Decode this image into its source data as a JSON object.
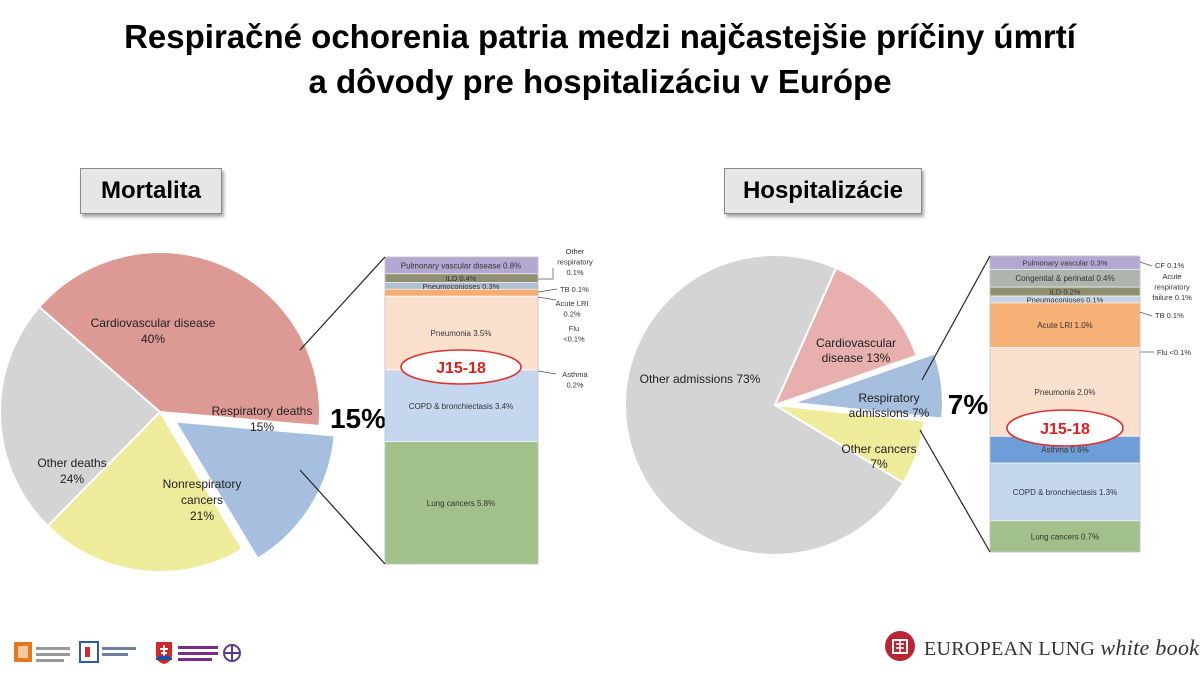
{
  "title_line1": "Respiračné ochorenia patria medzi najčastejšie príčiny úmrtí",
  "title_line2": "a dôvody pre hospitalizáciu v Európe",
  "footer_brand": {
    "prefix": "EUROPEAN LUNG ",
    "suffix": "white book"
  },
  "chart_data": [
    {
      "type": "pie",
      "panel_label": "Mortalita",
      "slices": [
        {
          "label": "Cardiovascular disease",
          "value_label": "40%",
          "value": 40,
          "color": "#dd9a94"
        },
        {
          "label": "Respiratory deaths",
          "value_label": "15%",
          "value": 15,
          "color": "#a7bfdf",
          "exploded": true
        },
        {
          "label": "Nonrespiratory cancers",
          "value_label": "21%",
          "value": 21,
          "color": "#eeeb9b"
        },
        {
          "label": "Other deaths",
          "value_label": "24%",
          "value": 24,
          "color": "#d4d4d4"
        }
      ],
      "highlight": "15%",
      "breakdown": {
        "type": "stacked-bar",
        "segments": [
          {
            "label": "Pulmonary vascular disease 0.8%",
            "value": 0.8,
            "color": "#b4a8d3"
          },
          {
            "label": "ILD 0.4%",
            "value": 0.4,
            "color": "#8f8f70"
          },
          {
            "label": "Pneumoconioses 0.3%",
            "value": 0.3,
            "color": "#aebfd0"
          },
          {
            "label": "",
            "value": 0.2,
            "color": "#f5ad74"
          },
          {
            "label": "Pneumonia 3.5%",
            "value": 3.5,
            "color": "#fbe1cd"
          },
          {
            "label": "COPD & bronchiectasis 3.4%",
            "value": 3.4,
            "color": "#c5d6ef"
          },
          {
            "label": "Lung cancers 5.8%",
            "value": 5.8,
            "color": "#a2c08a"
          }
        ],
        "side_notes": [
          "Other respiratory 0.1%",
          "TB 0.1%",
          "Acute LRI 0.2%",
          "Flu <0.1%",
          "Asthma 0.2%"
        ],
        "code_label": "J15-18"
      }
    },
    {
      "type": "pie",
      "panel_label": "Hospitalizácie",
      "slices": [
        {
          "label": "Cardiovascular disease 13%",
          "value_label": "",
          "value": 13,
          "color": "#e7b0ae"
        },
        {
          "label": "Respiratory admissions 7%",
          "value_label": "",
          "value": 7,
          "color": "#a7bfdf",
          "exploded": true
        },
        {
          "label": "Other cancers 7%",
          "value_label": "",
          "value": 7,
          "color": "#eeeb9b"
        },
        {
          "label": "Other admissions 73%",
          "value_label": "",
          "value": 73,
          "color": "#d4d4d4"
        }
      ],
      "highlight": "7%",
      "breakdown": {
        "type": "stacked-bar",
        "segments": [
          {
            "label": "Pulmonary vascular 0.3%",
            "value": 0.3,
            "color": "#b4a8d3"
          },
          {
            "label": "Congenital & perinatal 0.4%",
            "value": 0.4,
            "color": "#aeb4ae"
          },
          {
            "label": "ILD 0.2%",
            "value": 0.2,
            "color": "#8f8f70"
          },
          {
            "label": "Pneumoconioses 0.1%",
            "value": 0.1,
            "color": "#c9d4e0"
          },
          {
            "label": "Acute LRI 1.0%",
            "value": 1.0,
            "color": "#f7b177"
          },
          {
            "label": "Pneumonia 2.0%",
            "value": 2.0,
            "color": "#fbe1cd"
          },
          {
            "label": "Asthma 0.6%",
            "value": 0.6,
            "color": "#6d9ed7"
          },
          {
            "label": "COPD & bronchiectasis 1.3%",
            "value": 1.3,
            "color": "#c5d6ef"
          },
          {
            "label": "Lung cancers 0.7%",
            "value": 0.7,
            "color": "#a2c08a"
          }
        ],
        "side_notes": [
          "CF 0.1%",
          "Acute respiratory failure 0.1%",
          "TB 0.1%",
          "Flu <0.1%"
        ],
        "code_label": "J15-18"
      }
    }
  ]
}
